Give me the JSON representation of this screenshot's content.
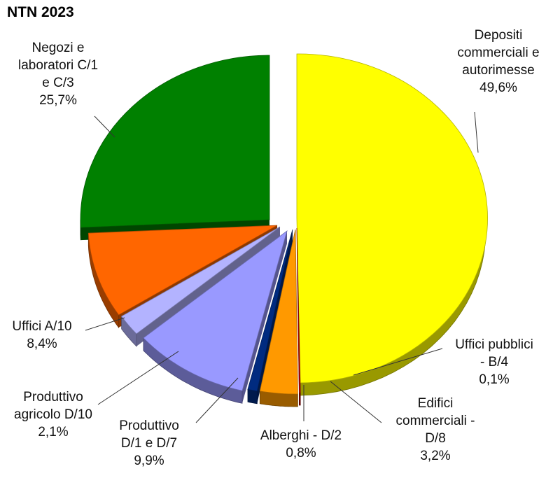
{
  "chart_data": {
    "type": "pie",
    "title": "NTN 2023",
    "colors": {
      "depositi": "#ffff00",
      "uffici_pubblici": "#c00000",
      "edifici_commerciali": "#ff9900",
      "alberghi": "#002b80",
      "produttivo_d1_d7": "#9999ff",
      "produttivo_agricolo": "#b3b3ff",
      "uffici_a10": "#ff6600",
      "negozi": "#008000"
    },
    "slices": [
      {
        "key": "depositi",
        "label_lines": [
          "Depositi",
          "commerciali e",
          "autorimesse"
        ],
        "value_text": "49,6%",
        "value": 49.6
      },
      {
        "key": "uffici_pubblici",
        "label_lines": [
          "Uffici pubblici",
          "- B/4"
        ],
        "value_text": "0,1%",
        "value": 0.1
      },
      {
        "key": "edifici_commerciali",
        "label_lines": [
          "Edifici",
          "commerciali -",
          "D/8"
        ],
        "value_text": "3,2%",
        "value": 3.2
      },
      {
        "key": "alberghi",
        "label_lines": [
          "Alberghi - D/2"
        ],
        "value_text": "0,8%",
        "value": 0.8
      },
      {
        "key": "produttivo_d1_d7",
        "label_lines": [
          "Produttivo",
          "D/1 e D/7"
        ],
        "value_text": "9,9%",
        "value": 9.9
      },
      {
        "key": "produttivo_agricolo",
        "label_lines": [
          "Produttivo",
          "agricolo D/10"
        ],
        "value_text": "2,1%",
        "value": 2.1
      },
      {
        "key": "uffici_a10",
        "label_lines": [
          "Uffici A/10"
        ],
        "value_text": "8,4%",
        "value": 8.4
      },
      {
        "key": "negozi",
        "label_lines": [
          "Negozi e",
          "laboratori C/1",
          "e C/3"
        ],
        "value_text": "25,7%",
        "value": 25.7
      }
    ]
  }
}
